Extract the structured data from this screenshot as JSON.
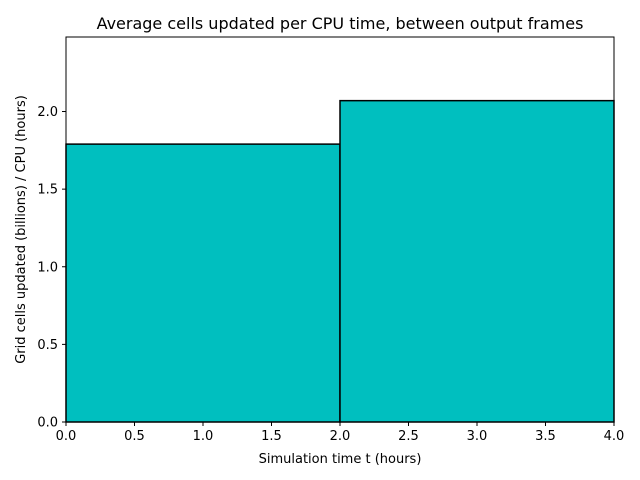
{
  "chart_data": {
    "type": "bar",
    "title": "Average cells updated per CPU time, between output frames",
    "xlabel": "Simulation time t (hours)",
    "ylabel": "Grid cells updated (billions) / CPU (hours)",
    "xlim": [
      0,
      4
    ],
    "ylim": [
      0,
      2.48
    ],
    "xticks": [
      "0.0",
      "0.5",
      "1.0",
      "1.5",
      "2.0",
      "2.5",
      "3.0",
      "3.5",
      "4.0"
    ],
    "yticks": [
      "0.0",
      "0.5",
      "1.0",
      "1.5",
      "2.0"
    ],
    "bars": [
      {
        "x_start": 0.0,
        "x_end": 2.0,
        "value": 1.79
      },
      {
        "x_start": 2.0,
        "x_end": 4.0,
        "value": 2.07
      }
    ],
    "bar_color": "#00bfbf",
    "edge_color": "#000000",
    "grid": false
  }
}
